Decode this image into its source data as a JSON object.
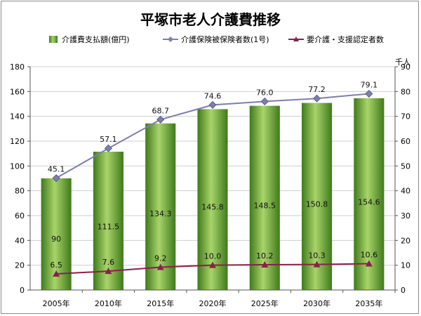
{
  "chart_data": {
    "type": "bar",
    "title": "平塚市老人介護費推移",
    "categories": [
      "2005年",
      "2010年",
      "2015年",
      "2020年",
      "2025年",
      "2030年",
      "2035年"
    ],
    "series": [
      {
        "name": "介護費支払額(億円)",
        "type": "bar",
        "axis": "left",
        "color": "#5f9a2c",
        "values": [
          90,
          111.5,
          134.3,
          145.8,
          148.5,
          150.8,
          154.6
        ],
        "labels": [
          "90",
          "111.5",
          "134.3",
          "145.8",
          "148.5",
          "150.8",
          "154.6"
        ]
      },
      {
        "name": "介護保険被保険者数(1号)",
        "type": "line",
        "axis": "right",
        "color": "#7b7fae",
        "marker": "diamond",
        "values": [
          45.1,
          57.1,
          68.7,
          74.6,
          76.0,
          77.2,
          79.1
        ],
        "labels": [
          "45.1",
          "57.1",
          "68.7",
          "74.6",
          "76.0",
          "77.2",
          "79.1"
        ]
      },
      {
        "name": "要介護・支援認定者数",
        "type": "line",
        "axis": "right",
        "color": "#8c1f4a",
        "marker": "triangle",
        "values": [
          6.5,
          7.6,
          9.2,
          10.0,
          10.2,
          10.3,
          10.6
        ],
        "labels": [
          "6.5",
          "7.6",
          "9.2",
          "10.0",
          "10.2",
          "10.3",
          "10.6"
        ]
      }
    ],
    "y_left": {
      "min": 0,
      "max": 180,
      "step": 20
    },
    "y_right": {
      "min": 0,
      "max": 90,
      "step": 10,
      "unit_label": "千人"
    },
    "legend": "top",
    "grid": true
  }
}
